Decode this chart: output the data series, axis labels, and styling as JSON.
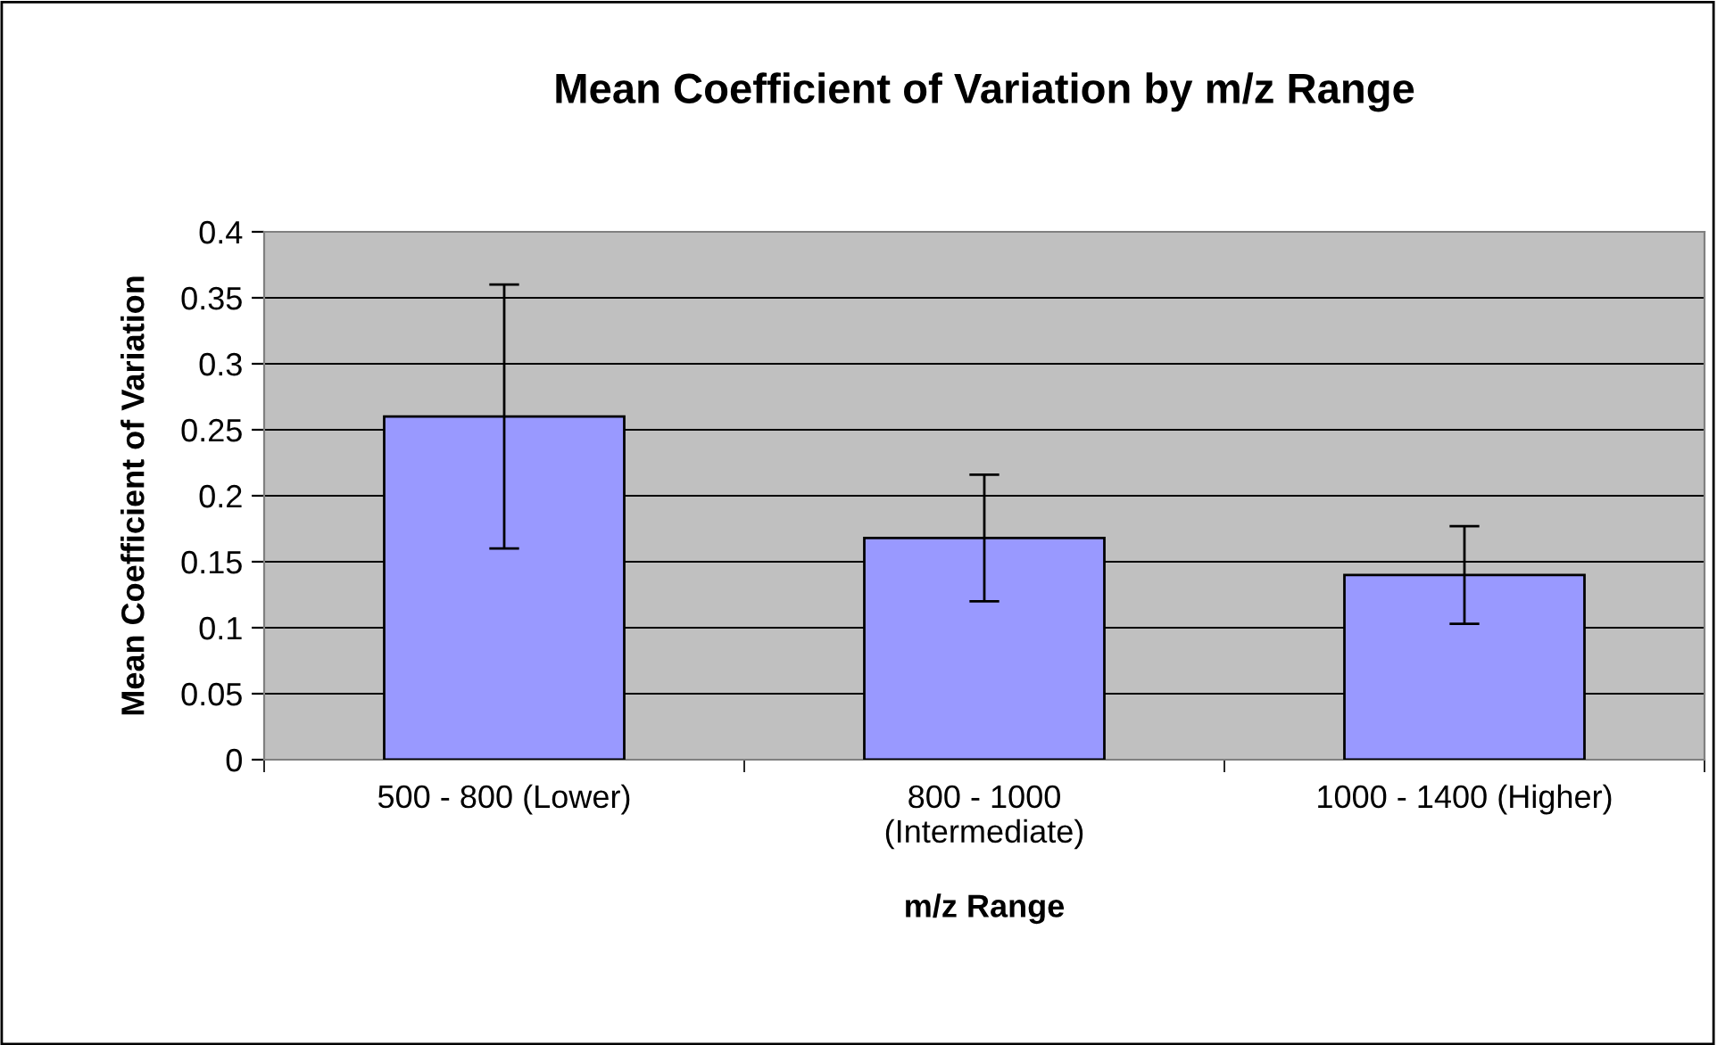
{
  "chart_data": {
    "type": "bar",
    "title": "Mean Coefficient of Variation by m/z Range",
    "xlabel": "m/z Range",
    "ylabel": "Mean Coefficient of Variation",
    "categories": [
      "500 - 800 (Lower)",
      "800 - 1000\n(Intermediate)",
      "1000 - 1400 (Higher)"
    ],
    "values": [
      0.26,
      0.168,
      0.14
    ],
    "errors": [
      0.1,
      0.048,
      0.037
    ],
    "color": "#9999ff",
    "ylim": [
      0,
      0.4
    ],
    "yticks": [
      0,
      0.05,
      0.1,
      0.15,
      0.2,
      0.25,
      0.3,
      0.35,
      0.4
    ],
    "grid": "y",
    "legend": false
  }
}
